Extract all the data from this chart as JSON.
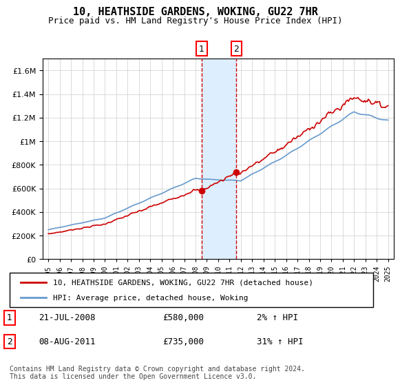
{
  "title": "10, HEATHSIDE GARDENS, WOKING, GU22 7HR",
  "subtitle": "Price paid vs. HM Land Registry's House Price Index (HPI)",
  "sale1_date": "21-JUL-2008",
  "sale1_price": 580000,
  "sale1_hpi_pct": "2%",
  "sale2_date": "08-AUG-2011",
  "sale2_price": 735000,
  "sale2_hpi_pct": "31%",
  "sale1_year": 2008.55,
  "sale2_year": 2011.6,
  "legend_line1": "10, HEATHSIDE GARDENS, WOKING, GU22 7HR (detached house)",
  "legend_line2": "HPI: Average price, detached house, Woking",
  "footer": "Contains HM Land Registry data © Crown copyright and database right 2024.\nThis data is licensed under the Open Government Licence v3.0.",
  "line_color_red": "#cc0000",
  "line_color_blue": "#6699cc",
  "highlight_color": "#ddeeff",
  "ylim_min": 0,
  "ylim_max": 1700000,
  "xlabel_years": [
    "1995",
    "1996",
    "1997",
    "1998",
    "1999",
    "2000",
    "2001",
    "2002",
    "2003",
    "2004",
    "2005",
    "2006",
    "2007",
    "2008",
    "2009",
    "2010",
    "2011",
    "2012",
    "2013",
    "2014",
    "2015",
    "2016",
    "2017",
    "2018",
    "2019",
    "2020",
    "2021",
    "2022",
    "2023",
    "2024",
    "2025"
  ]
}
